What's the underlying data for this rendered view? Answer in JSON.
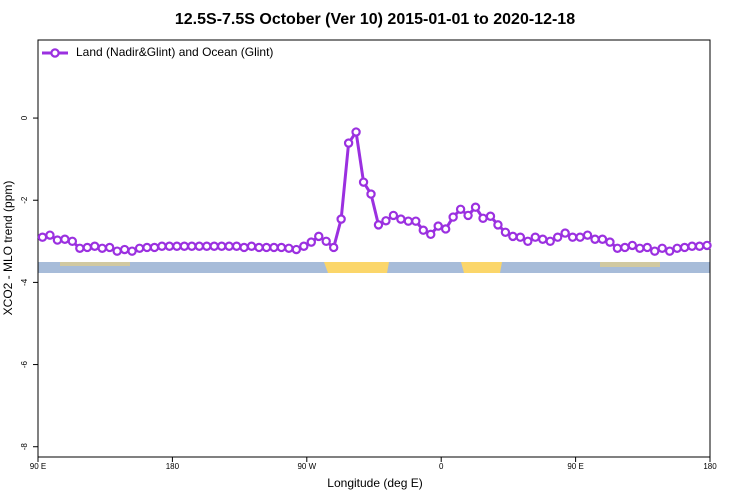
{
  "chart_data": {
    "type": "line",
    "title": "12.5S-7.5S October (Ver 10)   2015-01-01 to 2020-12-18",
    "x_label": "Longitude (deg E)",
    "y_label": "XCO2 - MLO trend (ppm)",
    "legend_position": "upper left",
    "x": [
      93,
      98,
      103,
      108,
      113,
      118,
      123,
      128,
      133,
      138,
      143,
      148,
      153,
      158,
      163,
      168,
      173,
      178,
      183,
      188,
      193,
      198,
      203,
      208,
      213,
      218,
      223,
      228,
      233,
      238,
      243,
      248,
      253,
      258,
      263,
      268,
      273,
      278,
      283,
      288,
      293,
      298,
      303,
      308,
      313,
      318,
      323,
      328,
      333,
      338,
      343,
      348,
      353,
      358,
      363,
      368,
      373,
      378,
      383,
      388,
      393,
      398,
      403,
      408,
      413,
      418,
      423,
      428,
      433,
      438,
      443,
      448,
      453,
      458,
      463,
      468,
      473,
      478,
      483,
      488,
      493,
      498,
      503,
      508,
      513,
      518,
      523,
      528,
      533,
      538
    ],
    "series": [
      {
        "name": "Land (Nadir&Glint) and Ocean (Glint)",
        "color": "#9b30e0",
        "values": [
          -2.9,
          -2.85,
          -2.97,
          -2.95,
          -3.0,
          -3.17,
          -3.15,
          -3.12,
          -3.17,
          -3.15,
          -3.24,
          -3.2,
          -3.24,
          -3.17,
          -3.15,
          -3.15,
          -3.12,
          -3.12,
          -3.12,
          -3.12,
          -3.12,
          -3.12,
          -3.12,
          -3.12,
          -3.12,
          -3.12,
          -3.12,
          -3.15,
          -3.12,
          -3.15,
          -3.15,
          -3.15,
          -3.15,
          -3.17,
          -3.2,
          -3.12,
          -3.02,
          -2.88,
          -3.0,
          -3.15,
          -2.46,
          -0.61,
          -0.34,
          -1.56,
          -1.85,
          -2.6,
          -2.5,
          -2.37,
          -2.46,
          -2.51,
          -2.51,
          -2.73,
          -2.83,
          -2.63,
          -2.7,
          -2.41,
          -2.22,
          -2.37,
          -2.17,
          -2.44,
          -2.39,
          -2.6,
          -2.78,
          -2.88,
          -2.9,
          -3.0,
          -2.9,
          -2.95,
          -3.0,
          -2.9,
          -2.8,
          -2.9,
          -2.9,
          -2.85,
          -2.95,
          -2.95,
          -3.02,
          -3.17,
          -3.15,
          -3.1,
          -3.17,
          -3.15,
          -3.24,
          -3.17,
          -3.24,
          -3.17,
          -3.15,
          -3.12,
          -3.12,
          -3.1
        ]
      }
    ],
    "xlim": [
      90,
      540
    ],
    "xticks": [
      {
        "value": 90,
        "label": "90 E"
      },
      180,
      {
        "value": 270,
        "label": "90 W"
      },
      {
        "value": 360,
        "label": "0"
      },
      {
        "value": 450,
        "label": "90 E"
      },
      {
        "value": 540,
        "label": "180"
      }
    ],
    "ylim": [
      -8.25,
      1.9
    ],
    "yticks": [
      -8,
      -6,
      -4,
      -2,
      0
    ]
  }
}
